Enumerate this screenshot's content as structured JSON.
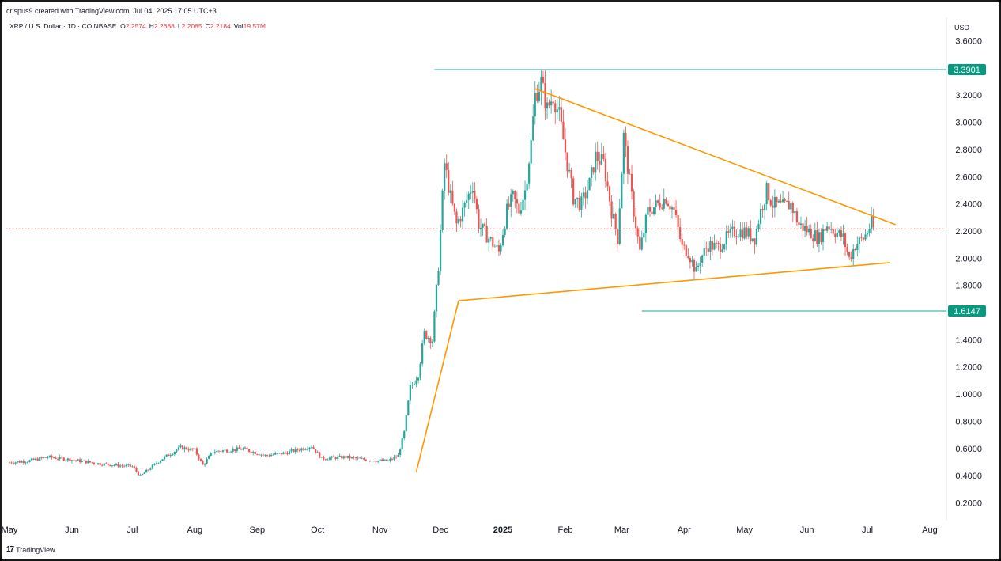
{
  "header": {
    "attribution": "crispus9 created with TradingView.com, Jul 04, 2025 17:05 UTC+3"
  },
  "legend": {
    "symbol": "XRP / U.S. Dollar · 1D · COINBASE",
    "open_label": "O",
    "open": "2.2574",
    "high_label": "H",
    "high": "2.2688",
    "low_label": "L",
    "low": "2.2085",
    "close_label": "C",
    "close": "2.2184",
    "vol_label": "Vol",
    "vol": "19.57M"
  },
  "currency": "USD",
  "footer": {
    "brand": "TradingView",
    "logo_glyph": "17"
  },
  "colors": {
    "up": "#26a69a",
    "down": "#ef5350",
    "pattern_line": "#ff9800",
    "level_line": "#26a69a",
    "label_bg": "#089981",
    "last_price_line": "#ef5350"
  },
  "chart_data": {
    "type": "candlestick",
    "title": "",
    "xlabel": "",
    "ylabel": "",
    "y_ticks": [
      "0.2000",
      "0.4000",
      "0.6000",
      "0.8000",
      "1.0000",
      "1.2000",
      "1.4000",
      "1.6000",
      "1.8000",
      "2.0000",
      "2.2000",
      "2.4000",
      "2.6000",
      "2.8000",
      "3.0000",
      "3.2000",
      "3.6000"
    ],
    "x_ticks": [
      {
        "label": "May",
        "date": "2024-05-01"
      },
      {
        "label": "Jun",
        "date": "2024-06-01"
      },
      {
        "label": "Jul",
        "date": "2024-07-01"
      },
      {
        "label": "Aug",
        "date": "2024-08-01"
      },
      {
        "label": "Sep",
        "date": "2024-09-01"
      },
      {
        "label": "Oct",
        "date": "2024-10-01"
      },
      {
        "label": "Nov",
        "date": "2024-11-01"
      },
      {
        "label": "Dec",
        "date": "2024-12-01"
      },
      {
        "label": "2025",
        "date": "2025-01-01",
        "bold": true
      },
      {
        "label": "Feb",
        "date": "2025-02-01"
      },
      {
        "label": "Mar",
        "date": "2025-03-01"
      },
      {
        "label": "Apr",
        "date": "2025-04-01"
      },
      {
        "label": "May",
        "date": "2025-05-01"
      },
      {
        "label": "Jun",
        "date": "2025-06-01"
      },
      {
        "label": "Jul",
        "date": "2025-07-01"
      },
      {
        "label": "Aug",
        "date": "2025-08-01"
      }
    ],
    "ylim": [
      0.1,
      3.75
    ],
    "price_levels": [
      {
        "label": "3.3901",
        "value": 3.3901,
        "from": "2024-11-28"
      },
      {
        "label": "1.6147",
        "value": 1.6147,
        "from": "2025-03-11"
      }
    ],
    "last_price": 2.2184,
    "trendlines": [
      {
        "name": "pattern-lead-in",
        "points": [
          [
            "2024-11-19",
            0.43
          ],
          [
            "2024-12-10",
            1.69
          ]
        ]
      },
      {
        "name": "lower-triangle-line",
        "points": [
          [
            "2024-12-10",
            1.69
          ],
          [
            "2025-07-12",
            1.97
          ]
        ]
      },
      {
        "name": "upper-triangle-line",
        "points": [
          [
            "2025-01-17",
            3.25
          ],
          [
            "2025-07-15",
            2.25
          ]
        ]
      }
    ],
    "price_path": [
      [
        "2024-05-01",
        0.5
      ],
      [
        "2024-05-10",
        0.51
      ],
      [
        "2024-05-20",
        0.54
      ],
      [
        "2024-06-01",
        0.52
      ],
      [
        "2024-06-15",
        0.49
      ],
      [
        "2024-07-01",
        0.47
      ],
      [
        "2024-07-05",
        0.4
      ],
      [
        "2024-07-15",
        0.52
      ],
      [
        "2024-07-25",
        0.61
      ],
      [
        "2024-08-01",
        0.59
      ],
      [
        "2024-08-05",
        0.48
      ],
      [
        "2024-08-10",
        0.58
      ],
      [
        "2024-08-25",
        0.6
      ],
      [
        "2024-09-05",
        0.55
      ],
      [
        "2024-09-15",
        0.57
      ],
      [
        "2024-09-28",
        0.62
      ],
      [
        "2024-10-03",
        0.53
      ],
      [
        "2024-10-15",
        0.54
      ],
      [
        "2024-10-25",
        0.52
      ],
      [
        "2024-11-05",
        0.51
      ],
      [
        "2024-11-10",
        0.55
      ],
      [
        "2024-11-13",
        0.72
      ],
      [
        "2024-11-16",
        1.05
      ],
      [
        "2024-11-20",
        1.15
      ],
      [
        "2024-11-23",
        1.45
      ],
      [
        "2024-11-27",
        1.4
      ],
      [
        "2024-11-30",
        1.95
      ],
      [
        "2024-12-03",
        2.7
      ],
      [
        "2024-12-06",
        2.45
      ],
      [
        "2024-12-09",
        2.25
      ],
      [
        "2024-12-12",
        2.35
      ],
      [
        "2024-12-17",
        2.55
      ],
      [
        "2024-12-20",
        2.25
      ],
      [
        "2024-12-25",
        2.15
      ],
      [
        "2024-12-30",
        2.05
      ],
      [
        "2025-01-03",
        2.35
      ],
      [
        "2025-01-06",
        2.45
      ],
      [
        "2025-01-09",
        2.35
      ],
      [
        "2025-01-12",
        2.5
      ],
      [
        "2025-01-15",
        2.85
      ],
      [
        "2025-01-17",
        3.2
      ],
      [
        "2025-01-20",
        3.3
      ],
      [
        "2025-01-23",
        3.1
      ],
      [
        "2025-01-26",
        3.2
      ],
      [
        "2025-01-29",
        3.05
      ],
      [
        "2025-02-02",
        2.7
      ],
      [
        "2025-02-05",
        2.45
      ],
      [
        "2025-02-09",
        2.4
      ],
      [
        "2025-02-13",
        2.55
      ],
      [
        "2025-02-16",
        2.75
      ],
      [
        "2025-02-20",
        2.7
      ],
      [
        "2025-02-24",
        2.35
      ],
      [
        "2025-02-27",
        2.15
      ],
      [
        "2025-03-02",
        2.9
      ],
      [
        "2025-03-06",
        2.45
      ],
      [
        "2025-03-10",
        2.05
      ],
      [
        "2025-03-14",
        2.35
      ],
      [
        "2025-03-19",
        2.4
      ],
      [
        "2025-03-23",
        2.45
      ],
      [
        "2025-03-27",
        2.35
      ],
      [
        "2025-03-31",
        2.08
      ],
      [
        "2025-04-03",
        2.05
      ],
      [
        "2025-04-07",
        1.9
      ],
      [
        "2025-04-09",
        2.0
      ],
      [
        "2025-04-13",
        2.1
      ],
      [
        "2025-04-18",
        2.08
      ],
      [
        "2025-04-22",
        2.15
      ],
      [
        "2025-04-26",
        2.2
      ],
      [
        "2025-05-01",
        2.2
      ],
      [
        "2025-05-06",
        2.15
      ],
      [
        "2025-05-09",
        2.35
      ],
      [
        "2025-05-12",
        2.5
      ],
      [
        "2025-05-15",
        2.4
      ],
      [
        "2025-05-20",
        2.38
      ],
      [
        "2025-05-24",
        2.4
      ],
      [
        "2025-05-28",
        2.25
      ],
      [
        "2025-06-02",
        2.2
      ],
      [
        "2025-06-07",
        2.15
      ],
      [
        "2025-06-11",
        2.25
      ],
      [
        "2025-06-15",
        2.2
      ],
      [
        "2025-06-19",
        2.15
      ],
      [
        "2025-06-22",
        2.0
      ],
      [
        "2025-06-25",
        2.1
      ],
      [
        "2025-06-29",
        2.15
      ],
      [
        "2025-07-01",
        2.2
      ],
      [
        "2025-07-03",
        2.26
      ],
      [
        "2025-07-04",
        2.2184
      ]
    ]
  }
}
